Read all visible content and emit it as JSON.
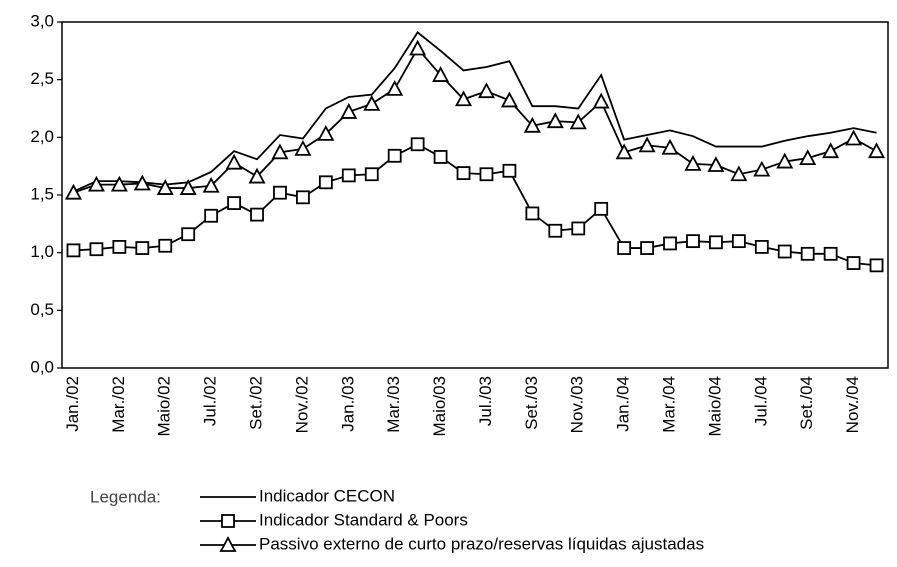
{
  "chart_data": {
    "type": "line",
    "categories": [
      "Jan./02",
      null,
      "Mar./02",
      null,
      "Maio/02",
      null,
      "Jul./02",
      null,
      "Set./02",
      null,
      "Nov./02",
      null,
      "Jan./03",
      null,
      "Mar./03",
      null,
      "Maio/03",
      null,
      "Jul./03",
      null,
      "Set./03",
      null,
      "Nov./03",
      null,
      "Jan./04",
      null,
      "Mar./04",
      null,
      "Maio/04",
      null,
      "Jul./04",
      null,
      "Set./04",
      null,
      "Nov./04",
      null
    ],
    "series": [
      {
        "name": "Indicador CECON",
        "color": "#000000",
        "marker": "none",
        "values": [
          1.53,
          1.62,
          1.62,
          1.61,
          1.59,
          1.61,
          1.7,
          1.88,
          1.81,
          2.02,
          1.99,
          2.25,
          2.35,
          2.37,
          2.6,
          2.91,
          2.75,
          2.58,
          2.61,
          2.66,
          2.27,
          2.27,
          2.25,
          2.54,
          1.98,
          2.02,
          2.06,
          2.01,
          1.92,
          1.92,
          1.92,
          1.97,
          2.01,
          2.04,
          2.08,
          2.04
        ]
      },
      {
        "name": "Indicador Standard & Poors",
        "color": "#000000",
        "marker": "square",
        "values": [
          1.02,
          1.03,
          1.05,
          1.04,
          1.06,
          1.16,
          1.32,
          1.43,
          1.33,
          1.52,
          1.48,
          1.61,
          1.67,
          1.68,
          1.84,
          1.94,
          1.83,
          1.69,
          1.68,
          1.71,
          1.34,
          1.19,
          1.21,
          1.38,
          1.04,
          1.04,
          1.08,
          1.1,
          1.09,
          1.1,
          1.05,
          1.01,
          0.99,
          0.99,
          0.91,
          0.89
        ]
      },
      {
        "name": "Passivo externo de curto prazo/reservas líquidas ajustadas",
        "color": "#000000",
        "marker": "triangle",
        "values": [
          1.52,
          1.59,
          1.59,
          1.6,
          1.56,
          1.56,
          1.58,
          1.78,
          1.66,
          1.87,
          1.9,
          2.03,
          2.22,
          2.29,
          2.42,
          2.77,
          2.54,
          2.33,
          2.4,
          2.32,
          2.1,
          2.14,
          2.13,
          2.31,
          1.87,
          1.93,
          1.91,
          1.77,
          1.76,
          1.68,
          1.72,
          1.79,
          1.82,
          1.88,
          1.99,
          1.88
        ]
      }
    ],
    "ylim": [
      0,
      3
    ],
    "yticks": [
      {
        "value": 0,
        "label": "0,0"
      },
      {
        "value": 0.5,
        "label": "0,5"
      },
      {
        "value": 1,
        "label": "1,0"
      },
      {
        "value": 1.5,
        "label": "1,5"
      },
      {
        "value": 2,
        "label": "2,0"
      },
      {
        "value": 2.5,
        "label": "2,5"
      },
      {
        "value": 3,
        "label": "3,0"
      }
    ],
    "grid": false,
    "legend_title": "Legenda:"
  }
}
